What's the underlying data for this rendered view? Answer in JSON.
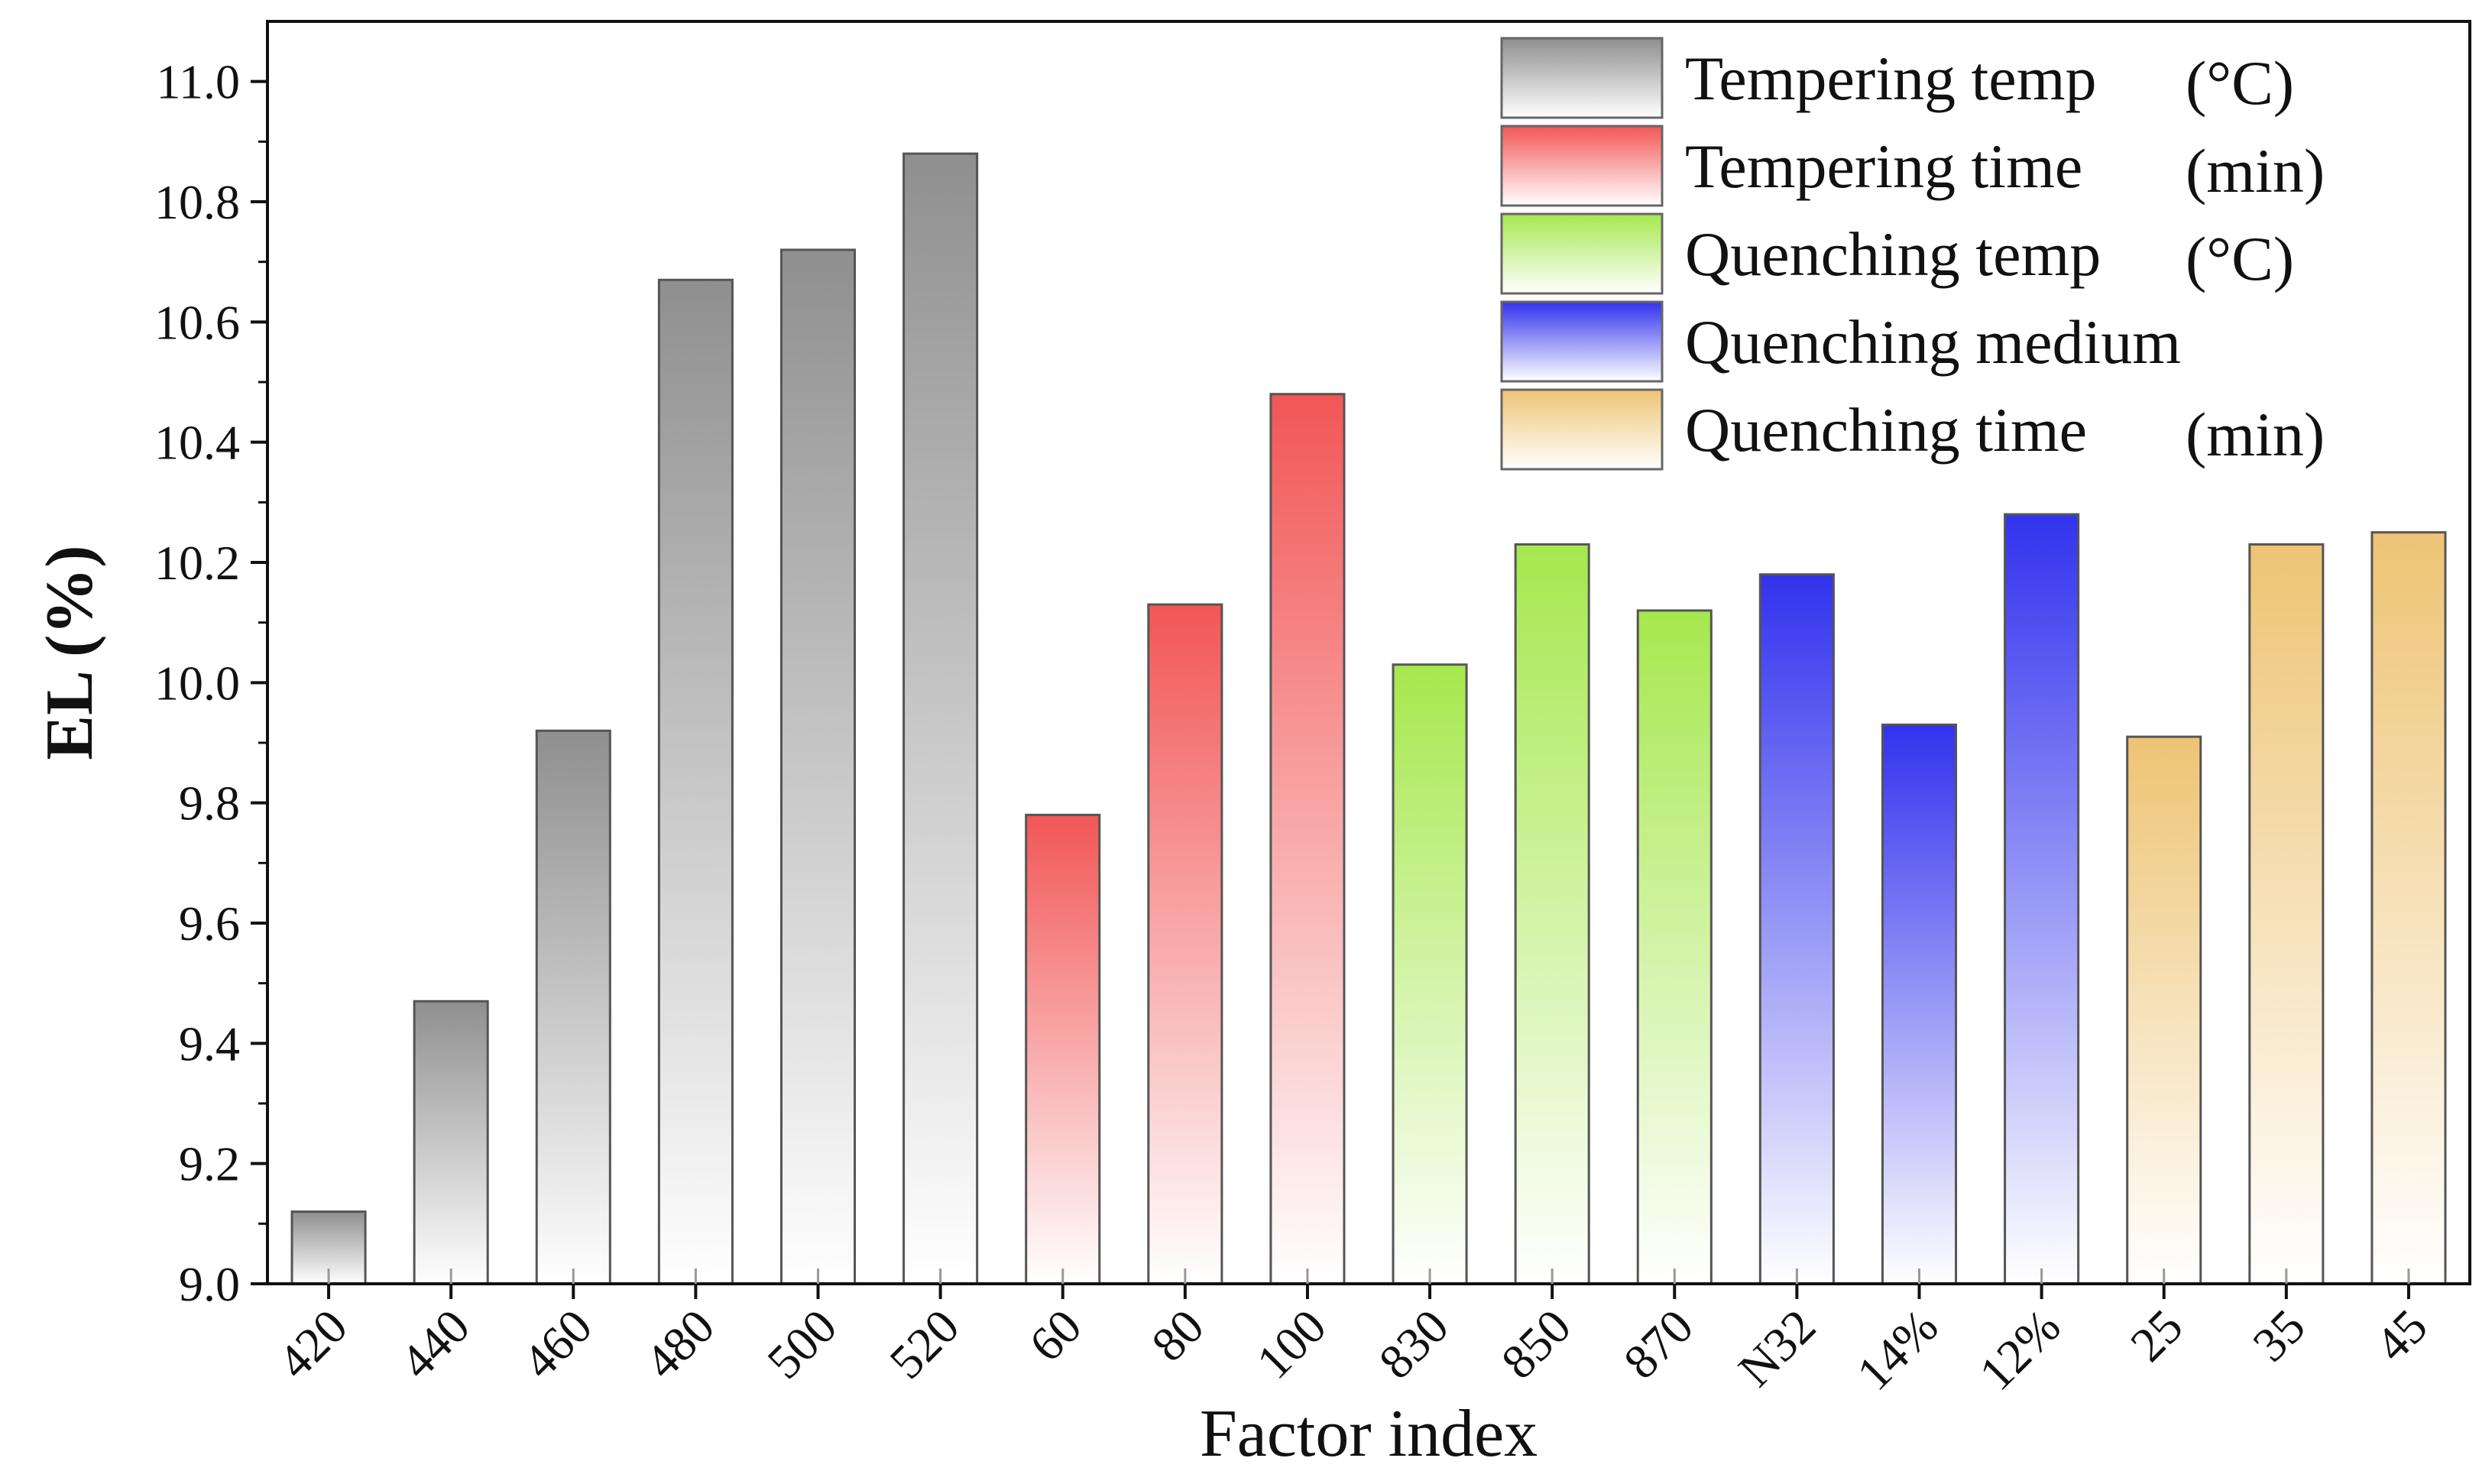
{
  "chart_data": {
    "type": "bar",
    "title": "",
    "xlabel": "Factor index",
    "ylabel": "EL  (%)",
    "ylim": [
      9.0,
      11.1
    ],
    "yticks": [
      "9.0",
      "9.2",
      "9.4",
      "9.6",
      "9.8",
      "10.0",
      "10.2",
      "10.4",
      "10.6",
      "10.8",
      "11.0"
    ],
    "categories": [
      "420",
      "440",
      "460",
      "480",
      "500",
      "520",
      "60",
      "80",
      "100",
      "830",
      "850",
      "870",
      "N32",
      "14%",
      "12%",
      "25",
      "35",
      "45"
    ],
    "values": [
      9.12,
      9.47,
      9.92,
      10.67,
      10.72,
      10.88,
      9.78,
      10.13,
      10.48,
      10.03,
      10.23,
      10.12,
      10.18,
      9.93,
      10.28,
      9.91,
      10.23,
      10.25
    ],
    "groups": [
      0,
      0,
      0,
      0,
      0,
      0,
      1,
      1,
      1,
      2,
      2,
      2,
      3,
      3,
      3,
      4,
      4,
      4
    ],
    "series": [
      {
        "name": "Tempering temp",
        "unit": "(°C)",
        "color": "#8f8f8f"
      },
      {
        "name": "Tempering time",
        "unit": "(min)",
        "color": "#f25656"
      },
      {
        "name": "Quenching temp",
        "unit": "(°C)",
        "color": "#a6e84e"
      },
      {
        "name": "Quenching medium",
        "unit": "",
        "color": "#3232ee"
      },
      {
        "name": "Quenching time",
        "unit": "(min)",
        "color": "#eec474"
      }
    ],
    "legend_position": "top-right",
    "grid": false
  }
}
